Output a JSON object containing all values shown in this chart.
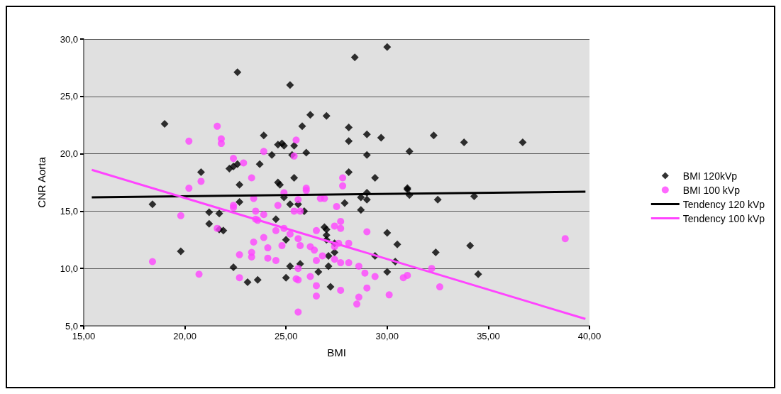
{
  "chart_data": {
    "type": "scatter",
    "xlabel": "BMI",
    "ylabel": "CNR Aorta",
    "xlim": [
      15,
      40
    ],
    "xticks": [
      {
        "value": 15,
        "label": "15,00"
      },
      {
        "value": 20,
        "label": "20,00"
      },
      {
        "value": 25,
        "label": "25,00"
      },
      {
        "value": 30,
        "label": "30,00"
      },
      {
        "value": 35,
        "label": "35,00"
      },
      {
        "value": 40,
        "label": "40,00"
      }
    ],
    "ylim": [
      5,
      30
    ],
    "yticks": [
      {
        "value": 5,
        "label": "5,0"
      },
      {
        "value": 10,
        "label": "10,0"
      },
      {
        "value": 15,
        "label": "15,0"
      },
      {
        "value": 20,
        "label": "20,0"
      },
      {
        "value": 25,
        "label": "25,0"
      },
      {
        "value": 30,
        "label": "30,0"
      }
    ],
    "grid": "y",
    "legend": "right",
    "series": [
      {
        "name": "BMI 120kVp",
        "marker": "diamond",
        "color": "#000000",
        "x": [
          22.6,
          19.0,
          20.8,
          22.2,
          22.4,
          22.6,
          22.7,
          25.2,
          28.4,
          30.0,
          26.2,
          27.0,
          25.8,
          28.1,
          29.0,
          29.7,
          28.1,
          23.9,
          24.6,
          24.8,
          24.9,
          25.4,
          24.3,
          26.0,
          25.3,
          29.0,
          31.1,
          23.7,
          28.1,
          25.4,
          29.4,
          24.6,
          24.7,
          31.0,
          18.4,
          19.8,
          21.2,
          21.7,
          21.2,
          21.7,
          21.9,
          22.7,
          22.4,
          23.1,
          23.6,
          24.9,
          25.2,
          25.6,
          25.9,
          27.9,
          28.7,
          29.0,
          29.0,
          28.7,
          31.0,
          31.1,
          24.5,
          26.9,
          27.0,
          27.0,
          27.0,
          25.0,
          27.4,
          27.4,
          27.1,
          27.1,
          26.6,
          25.7,
          25.2,
          25.0,
          27.2,
          29.4,
          30.0,
          30.5,
          30.4,
          30.0,
          32.3,
          33.8,
          36.7,
          32.5,
          34.3,
          32.4,
          34.1,
          34.5
        ],
        "values": [
          27.1,
          22.6,
          18.4,
          18.7,
          18.9,
          19.1,
          17.3,
          26.0,
          28.4,
          29.3,
          23.4,
          23.3,
          22.4,
          22.3,
          21.7,
          21.4,
          21.1,
          21.6,
          20.8,
          20.9,
          20.7,
          20.7,
          19.9,
          20.1,
          19.9,
          19.9,
          20.2,
          19.1,
          18.4,
          17.9,
          17.9,
          17.5,
          17.3,
          17.0,
          15.6,
          11.5,
          14.9,
          14.8,
          13.9,
          13.4,
          13.3,
          15.8,
          10.1,
          8.8,
          9.0,
          16.2,
          15.6,
          15.6,
          15.0,
          15.7,
          16.2,
          16.6,
          16.0,
          15.1,
          16.9,
          16.4,
          14.3,
          13.6,
          13.4,
          12.9,
          12.5,
          12.5,
          12.2,
          11.4,
          11.1,
          10.2,
          9.7,
          10.4,
          10.2,
          9.2,
          8.4,
          11.1,
          13.1,
          12.1,
          10.6,
          9.7,
          21.6,
          21.0,
          21.0,
          16.0,
          16.3,
          11.4,
          12.0,
          9.5
        ]
      },
      {
        "name": "BMI 100 kVp",
        "marker": "circle",
        "color": "#ff44ff",
        "x": [
          21.6,
          20.2,
          21.8,
          21.8,
          22.4,
          22.9,
          20.8,
          20.2,
          23.3,
          25.5,
          23.9,
          25.4,
          27.8,
          27.8,
          26.0,
          19.8,
          18.4,
          20.7,
          21.6,
          22.4,
          22.4,
          23.4,
          23.5,
          23.5,
          23.4,
          22.7,
          23.3,
          23.3,
          22.7,
          24.9,
          26.0,
          25.6,
          26.7,
          26.9,
          24.6,
          25.4,
          25.7,
          27.5,
          23.9,
          23.6,
          24.5,
          24.9,
          25.2,
          26.5,
          27.4,
          27.7,
          27.7,
          29.0,
          23.9,
          24.1,
          24.8,
          25.6,
          25.7,
          26.2,
          26.4,
          27.4,
          27.6,
          28.1,
          24.1,
          24.5,
          26.8,
          26.5,
          27.4,
          27.7,
          28.1,
          25.6,
          28.6,
          28.9,
          29.4,
          30.8,
          31.0,
          25.5,
          25.6,
          26.2,
          26.5,
          27.7,
          29.0,
          30.1,
          26.5,
          28.6,
          28.5,
          25.6,
          38.8,
          32.2,
          32.6
        ],
        "values": [
          22.4,
          21.1,
          21.3,
          20.9,
          19.6,
          19.2,
          17.6,
          17.0,
          17.9,
          21.2,
          20.2,
          19.8,
          17.9,
          17.2,
          17.0,
          14.6,
          10.6,
          9.5,
          13.5,
          15.5,
          15.3,
          16.1,
          15.0,
          14.3,
          12.3,
          11.2,
          11.4,
          11.0,
          9.2,
          16.6,
          16.8,
          16.0,
          16.1,
          16.1,
          15.5,
          15.0,
          15.0,
          15.4,
          14.7,
          14.2,
          13.3,
          13.5,
          13.0,
          13.3,
          13.7,
          14.1,
          13.5,
          13.2,
          12.7,
          11.8,
          12.0,
          12.6,
          12.0,
          11.9,
          11.6,
          11.9,
          12.2,
          12.2,
          10.9,
          10.7,
          11.1,
          10.7,
          10.8,
          10.5,
          10.5,
          10.0,
          10.2,
          9.6,
          9.3,
          9.2,
          9.4,
          9.1,
          9.0,
          9.3,
          8.5,
          8.1,
          8.3,
          7.7,
          7.6,
          7.5,
          6.9,
          6.2,
          12.6,
          10.0,
          8.4
        ]
      },
      {
        "name": "Tendency 120 kVp",
        "type": "line",
        "marker": "none",
        "color": "#000000",
        "x": [
          15.4,
          39.8
        ],
        "values": [
          16.2,
          16.7
        ]
      },
      {
        "name": "Tendency 100 kVp",
        "type": "line",
        "marker": "none",
        "color": "#ff44ff",
        "x": [
          15.4,
          39.8
        ],
        "values": [
          18.6,
          5.6
        ]
      }
    ]
  }
}
